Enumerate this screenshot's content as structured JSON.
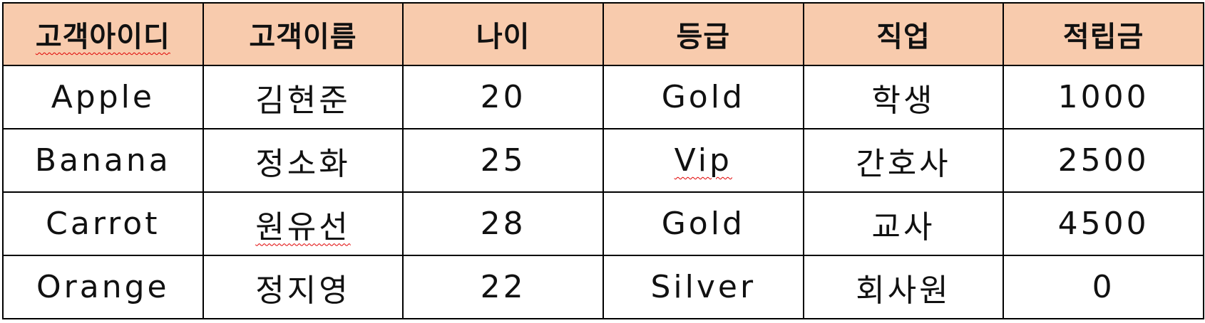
{
  "table": {
    "header_bg": "#f8cbad",
    "border_color": "#000000",
    "spellcheck_underline_color": "#e00000",
    "headers": [
      "고객아이디",
      "고객이름",
      "나이",
      "등급",
      "직업",
      "적립금"
    ],
    "rows": [
      [
        "Apple",
        "김현준",
        "20",
        "Gold",
        "학생",
        "1000"
      ],
      [
        "Banana",
        "정소화",
        "25",
        "Vip",
        "간호사",
        "2500"
      ],
      [
        "Carrot",
        "원유선",
        "28",
        "Gold",
        "교사",
        "4500"
      ],
      [
        "Orange",
        "정지영",
        "22",
        "Silver",
        "회사원",
        "0"
      ]
    ]
  }
}
